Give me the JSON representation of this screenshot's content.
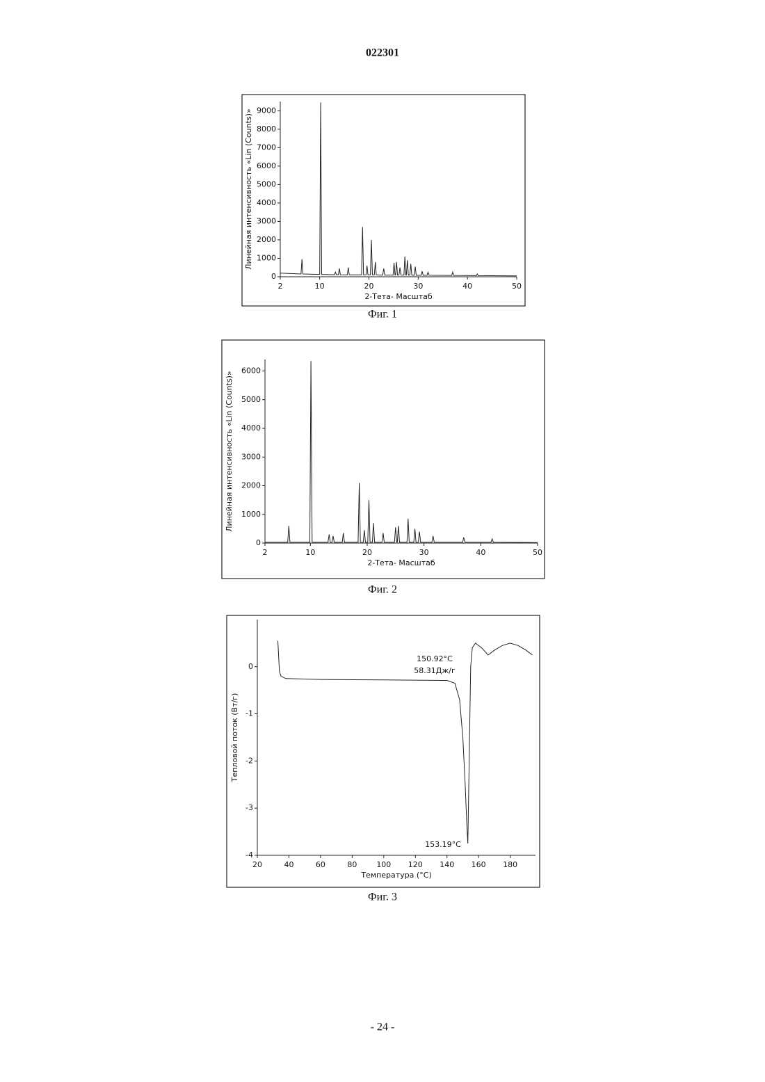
{
  "header": "022301",
  "footer": "- 24 -",
  "chart_data": [
    {
      "type": "line",
      "caption": "Фиг. 1",
      "x_label": "2-Тета- Масштаб",
      "y_label": "Линейная интенсивность «Lin (Counts)»",
      "color": "#222",
      "xlim": [
        2,
        50
      ],
      "ylim": [
        0,
        9500
      ],
      "xticks": [
        2,
        10,
        20,
        30,
        40,
        50
      ],
      "yticks": [
        0,
        1000,
        2000,
        3000,
        4000,
        5000,
        6000,
        7000,
        8000,
        9000
      ],
      "x": [
        2,
        6.2,
        6.4,
        6.6,
        10.0,
        10.2,
        10.4,
        13.0,
        13.2,
        13.4,
        13.8,
        14.0,
        14.2,
        15.6,
        15.8,
        16.0,
        18.5,
        18.7,
        18.9,
        19.4,
        19.6,
        19.8,
        20.3,
        20.5,
        20.7,
        21.1,
        21.3,
        21.5,
        22.8,
        23.0,
        23.2,
        24.9,
        25.1,
        25.3,
        25.4,
        25.6,
        25.8,
        26.1,
        26.3,
        26.5,
        27.1,
        27.3,
        27.5,
        27.6,
        27.8,
        28.0,
        28.3,
        28.5,
        28.7,
        29.2,
        29.4,
        29.6,
        30.6,
        30.8,
        31.0,
        31.8,
        32.0,
        32.2,
        36.8,
        37.0,
        37.2,
        41.8,
        42.0,
        42.2,
        50
      ],
      "values": [
        200,
        150,
        950,
        150,
        130,
        9450,
        130,
        110,
        250,
        110,
        110,
        450,
        110,
        100,
        500,
        100,
        100,
        2700,
        100,
        100,
        600,
        100,
        100,
        2000,
        100,
        100,
        800,
        100,
        90,
        450,
        90,
        90,
        750,
        90,
        90,
        800,
        90,
        90,
        500,
        90,
        90,
        1100,
        90,
        90,
        900,
        90,
        90,
        700,
        90,
        80,
        550,
        80,
        80,
        300,
        80,
        80,
        250,
        80,
        70,
        250,
        70,
        60,
        150,
        60,
        50
      ]
    },
    {
      "type": "line",
      "caption": "Фиг. 2",
      "x_label": "2-Тета- Масштаб",
      "y_label": "Линейная интенсивность «Lin (Counts)»",
      "color": "#222",
      "xlim": [
        2,
        50
      ],
      "ylim": [
        0,
        6400
      ],
      "xticks": [
        2,
        10,
        20,
        30,
        40,
        50
      ],
      "yticks": [
        0,
        1000,
        2000,
        3000,
        4000,
        5000,
        6000
      ],
      "x": [
        2,
        6.0,
        6.2,
        6.4,
        9.9,
        10.1,
        10.3,
        13.1,
        13.3,
        13.5,
        13.8,
        14.0,
        14.2,
        15.6,
        15.8,
        16.0,
        18.4,
        18.6,
        18.8,
        19.3,
        19.5,
        19.7,
        20.1,
        20.3,
        20.5,
        20.9,
        21.1,
        21.3,
        22.6,
        22.8,
        23.0,
        24.8,
        25.0,
        25.2,
        25.3,
        25.5,
        25.7,
        27.0,
        27.2,
        27.4,
        28.2,
        28.4,
        28.6,
        29.0,
        29.2,
        29.4,
        31.4,
        31.6,
        31.8,
        36.8,
        37.0,
        37.2,
        41.8,
        42.0,
        42.2,
        50
      ],
      "values": [
        30,
        30,
        600,
        30,
        30,
        6350,
        30,
        30,
        300,
        30,
        30,
        250,
        30,
        30,
        350,
        30,
        30,
        2100,
        30,
        30,
        450,
        30,
        30,
        1500,
        30,
        30,
        700,
        30,
        30,
        350,
        30,
        30,
        550,
        30,
        30,
        600,
        30,
        30,
        850,
        30,
        30,
        500,
        30,
        30,
        400,
        30,
        30,
        250,
        30,
        30,
        200,
        30,
        30,
        150,
        30,
        20
      ]
    },
    {
      "type": "line",
      "caption": "Фиг. 3",
      "x_label": "Температура (°C)",
      "y_label": "Тепловой поток (Вт/г)",
      "color": "#222",
      "annotations": [
        "150.92°C",
        "58.31Дж/г",
        "153.19°C"
      ],
      "xlim": [
        20,
        196
      ],
      "ylim": [
        -4,
        1.0
      ],
      "xticks": [
        20,
        40,
        60,
        80,
        100,
        120,
        140,
        160,
        180
      ],
      "yticks": [
        -4,
        -3,
        -2,
        -1,
        0
      ],
      "x": [
        33,
        34,
        35,
        38,
        60,
        100,
        140,
        145,
        148,
        150,
        151.5,
        152.5,
        153.19,
        153.8,
        154.5,
        155,
        156,
        158,
        162,
        166,
        170,
        175,
        180,
        185,
        190,
        194
      ],
      "values": [
        0.55,
        -0.1,
        -0.2,
        -0.25,
        -0.27,
        -0.28,
        -0.29,
        -0.35,
        -0.7,
        -1.5,
        -2.5,
        -3.3,
        -3.75,
        -2.5,
        -1,
        0,
        0.4,
        0.5,
        0.4,
        0.25,
        0.35,
        0.45,
        0.5,
        0.45,
        0.35,
        0.25
      ]
    }
  ]
}
